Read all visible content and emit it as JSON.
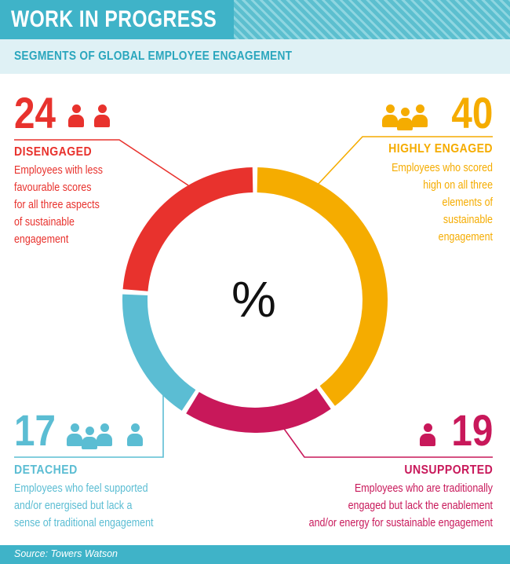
{
  "header": {
    "title": "WORK IN PROGRESS"
  },
  "subheader": {
    "text": "SEGMENTS OF GLOBAL EMPLOYEE ENGAGEMENT"
  },
  "center_symbol": "%",
  "segments": {
    "disengaged": {
      "value": "24",
      "label": "DISENGAGED",
      "desc": [
        "Employees with less",
        "favourable scores",
        "for all three aspects",
        "of sustainable",
        "engagement"
      ]
    },
    "highly_engaged": {
      "value": "40",
      "label": "HIGHLY ENGAGED",
      "desc": [
        "Employees who scored",
        "high on all three",
        "elements of",
        "sustainable",
        "engagement"
      ]
    },
    "detached": {
      "value": "17",
      "label": "DETACHED",
      "desc": [
        "Employees who feel supported",
        "and/or energised but lack a",
        "sense of traditional engagement"
      ]
    },
    "unsupported": {
      "value": "19",
      "label": "UNSUPPORTED",
      "desc": [
        "Employees who are traditionally",
        "engaged but lack the enablement",
        "and/or energy for sustainable engagement"
      ]
    }
  },
  "colors": {
    "highly_engaged": "#f5ac00",
    "unsupported": "#c8185a",
    "detached": "#5bbdd3",
    "disengaged": "#e8322d",
    "header": "#3fb3c8"
  },
  "chart_data": {
    "type": "pie",
    "title": "SEGMENTS OF GLOBAL EMPLOYEE ENGAGEMENT",
    "categories": [
      "Highly engaged",
      "Unsupported",
      "Detached",
      "Disengaged"
    ],
    "values": [
      40,
      19,
      17,
      24
    ],
    "unit": "%",
    "start_at": "top",
    "direction": "clockwise"
  },
  "footer": {
    "source": "Source: Towers Watson"
  }
}
